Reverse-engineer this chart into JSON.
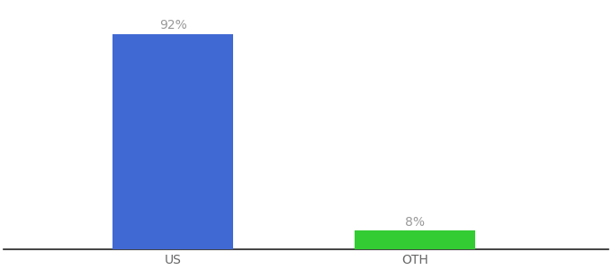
{
  "categories": [
    "US",
    "OTH"
  ],
  "values": [
    92,
    8
  ],
  "bar_colors": [
    "#4169d4",
    "#33cc33"
  ],
  "value_labels": [
    "92%",
    "8%"
  ],
  "background_color": "#ffffff",
  "label_color": "#999999",
  "tick_color": "#666666",
  "ylim": [
    0,
    105
  ],
  "bar_width": 0.5,
  "label_fontsize": 10,
  "tick_fontsize": 10,
  "x_positions": [
    1,
    2
  ],
  "xlim": [
    0.3,
    2.8
  ]
}
